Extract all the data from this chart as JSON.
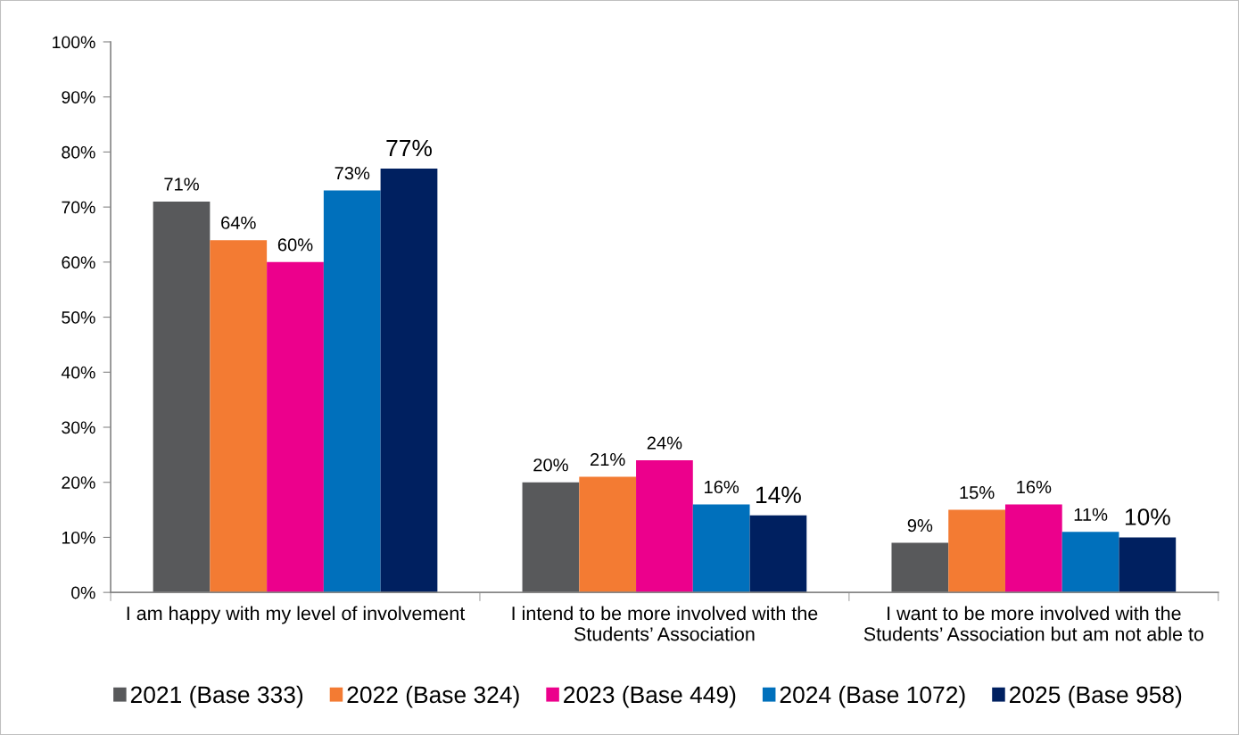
{
  "chart_data": {
    "type": "bar",
    "categories": [
      "I am happy with my level of involvement",
      "I intend to be more involved with the\nStudents’ Association",
      "I want to be more involved with the\nStudents’ Association but am not able to"
    ],
    "series": [
      {
        "name": "2021 (Base 333)",
        "color": "#58595b",
        "values": [
          71,
          20,
          9
        ],
        "value_labels": [
          "71%",
          "20%",
          "9%"
        ]
      },
      {
        "name": "2022 (Base 324)",
        "color": "#f37b33",
        "values": [
          64,
          21,
          15
        ],
        "value_labels": [
          "64%",
          "21%",
          "15%"
        ]
      },
      {
        "name": "2023 (Base 449)",
        "color": "#ec008c",
        "values": [
          60,
          24,
          16
        ],
        "value_labels": [
          "60%",
          "24%",
          "16%"
        ]
      },
      {
        "name": "2024 (Base 1072)",
        "color": "#0070bc",
        "values": [
          73,
          16,
          11
        ],
        "value_labels": [
          "73%",
          "16%",
          "11%"
        ]
      },
      {
        "name": "2025 (Base 958)",
        "color": "#002060",
        "values": [
          77,
          14,
          10
        ],
        "value_labels": [
          "77%",
          "14%",
          "10%"
        ]
      }
    ],
    "ylim": [
      0,
      100
    ],
    "yticks": [
      {
        "value": 0,
        "label": "0%"
      },
      {
        "value": 10,
        "label": "10%"
      },
      {
        "value": 20,
        "label": "20%"
      },
      {
        "value": 30,
        "label": "30%"
      },
      {
        "value": 40,
        "label": "40%"
      },
      {
        "value": 50,
        "label": "50%"
      },
      {
        "value": 60,
        "label": "60%"
      },
      {
        "value": 70,
        "label": "70%"
      },
      {
        "value": 80,
        "label": "80%"
      },
      {
        "value": 90,
        "label": "90%"
      },
      {
        "value": 100,
        "label": "100%"
      }
    ],
    "grid": false,
    "legend": "bottom"
  }
}
